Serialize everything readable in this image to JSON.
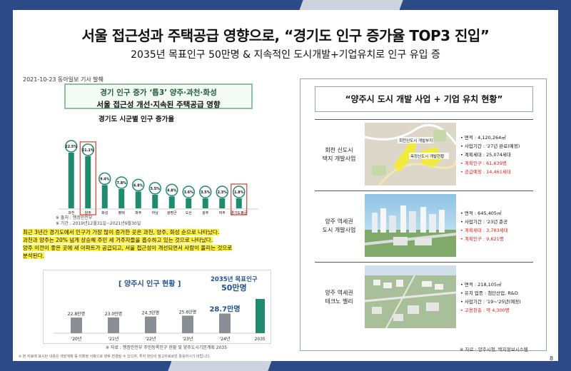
{
  "header": {
    "title": "서울 접근성과 주택공급 영향으로, “경기도 인구 증가율 TOP3 진입”",
    "subtitle": "2035년 목표인구 50만명 & 지속적인 도시개발+기업유치로 인구 유입 증"
  },
  "article": {
    "date": "2021-10-23 동아일보 기사 발췌",
    "headline_1": "경기 인구 증가 ‘톱3’ 양주·과천·화성",
    "headline_2": "서울 접근성 개선·지속된 주택공급 영향",
    "chart_title": "경기도 시군별 인구 증가율",
    "note_1": "※ 출처 : 행정안전부",
    "note_2": "※ 기간 : 2019년12월31일~2021년9월30일"
  },
  "chart_data": {
    "type": "bar",
    "title": "경기도 시군별 인구 증가율",
    "categories": [
      "과천",
      "양주",
      "화성",
      "평택",
      "파주",
      "하남",
      "광명군",
      "오산",
      "광주",
      "여주",
      "경기도평균"
    ],
    "values": [
      22.5,
      21.1,
      9.4,
      7.8,
      6.8,
      5.5,
      4.8,
      3.6,
      3.5,
      2.3,
      1.8
    ],
    "value_labels": [
      "22.5%",
      "21.1%",
      "9.4%",
      "7.8%",
      "6.8%",
      "5.5%",
      "4.8%",
      "3.6%",
      "3.5%",
      "2.3%",
      "1.8%"
    ],
    "highlight": [
      "양주",
      "경기도평균"
    ],
    "bar_color": "#1f8a6d",
    "highlight_color": "#e03a2a"
  },
  "body_text": {
    "line_1": "최근 3년간 경기도에서 인구가 가장 많이 증가한 곳은 과천, 양주, 화성 순으로 나타났다.",
    "line_2": "과천과 양주는 20% 넘게 상승해 주민 세 거주자들을 흡수하고 있는 것으로 나타났다.",
    "line_3": "양주 이전이 좋은 곳에 새 아파트가 공급되고, 서울 접근성이 개선되면서 사람이 몰리는 것으로",
    "line_4": "분석된다."
  },
  "population": {
    "title": "[ 양주시 인구 현황 ]",
    "target_label": "2035년 목표인구",
    "target_value": "50만명",
    "source": "※ 자료 : 행정안전부 주민등록인구 현황 및 양주도시기본계획 2035",
    "chart_data": {
      "type": "bar",
      "categories": [
        "'20년",
        "'21년",
        "'22년",
        "'23년",
        "'24년",
        "2035년"
      ],
      "values": [
        22.8,
        23.0,
        24.3,
        25.6,
        28.7,
        50
      ],
      "value_labels": [
        "22.8만명",
        "23.0만명",
        "24.3만명",
        "25.6만명",
        "28.7만명",
        ""
      ],
      "highlight_index": 4,
      "highlight_text": "28.7만명"
    }
  },
  "footer_note": "※ 본 자료에 표시된 내용은 개발계획 등 미확정 사항으로 향후 변경될 수 있으며, 투자 판단의 참고자료로만 활용하시기 바랍니다.",
  "right": {
    "title": "“양주시 도시 개발 사업  + 기업 유치 현황”",
    "source": "※ 자료 : 양주시청, 택지정보시스템",
    "projects": [
      {
        "name": "회천 신도시\n택지 개발사업",
        "map_labels": [
          "회천신도시 개발부지",
          "옥정신도시 개발현황"
        ],
        "info": [
          {
            "text": "• 면적 : 4,120,264㎡",
            "red": false
          },
          {
            "text": "• 사업기간 : '27년 완료(예정)",
            "red": false
          },
          {
            "text": "• 계획세대 : 25,074세대",
            "red": false
          },
          {
            "text": "• 계획인구 : 61,639명",
            "red": true
          },
          {
            "text": "• 공급예정 : 14,461세대",
            "red": true
          }
        ]
      },
      {
        "name": "양주 역세권\n도시 개발사업",
        "info": [
          {
            "text": "• 면적 : 645,405㎡",
            "red": false
          },
          {
            "text": "• 사업기간 : '23년 준공",
            "red": false
          },
          {
            "text": "• 계획세대 : 3,783세대",
            "red": true
          },
          {
            "text": "• 계획인구 : 9,621명",
            "red": true
          }
        ]
      },
      {
        "name": "양주 역세권\n테크노 밸리",
        "info": [
          {
            "text": "• 면적 : 218,105㎡",
            "red": false
          },
          {
            "text": "• 유치 업종 : 첨단산업, R&D",
            "red": false
          },
          {
            "text": "• 사업기간 : '19~'25년(예정)",
            "red": false
          },
          {
            "text": "• 고용창출 : 약 4,300명",
            "red": true
          }
        ]
      }
    ]
  },
  "page_number": "8"
}
